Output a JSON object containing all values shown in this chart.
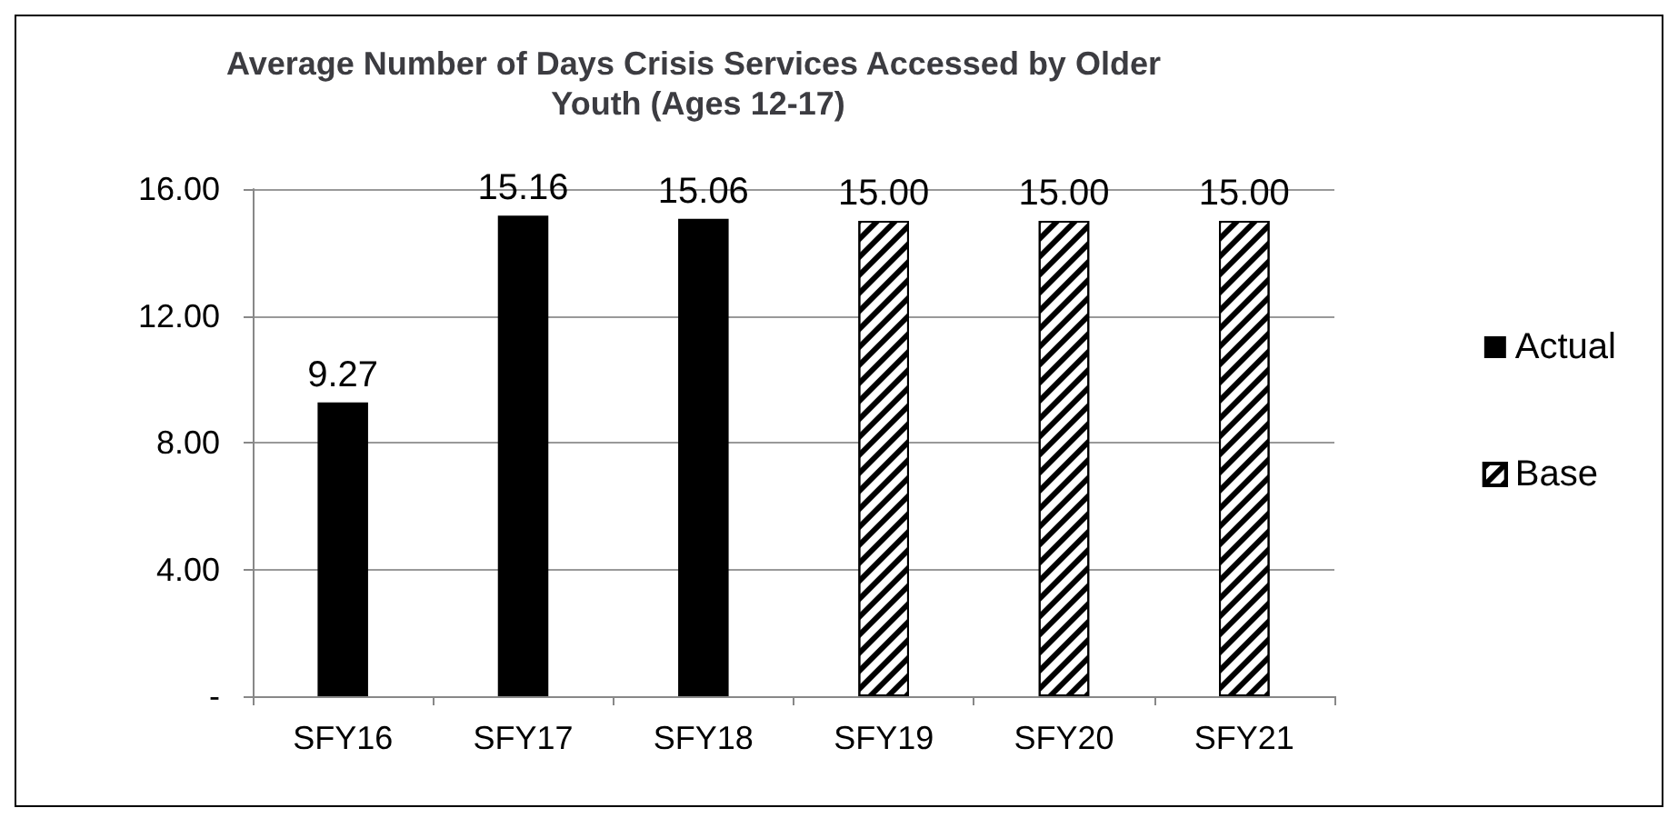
{
  "chart_data": {
    "type": "bar",
    "title": "Average Number of Days Crisis Services Accessed by Older Youth (Ages 12-17)",
    "categories": [
      "SFY16",
      "SFY17",
      "SFY18",
      "SFY19",
      "SFY20",
      "SFY21"
    ],
    "stacked": true,
    "series": [
      {
        "name": "Actual",
        "color": "#000000",
        "values": [
          9.27,
          15.16,
          15.06,
          null,
          null,
          null
        ],
        "value_labels": [
          "9.27",
          "15.16",
          "15.06",
          null,
          null,
          null
        ]
      },
      {
        "name": "Base",
        "color": "#ffffff",
        "values": [
          null,
          null,
          null,
          15,
          15,
          15
        ],
        "value_labels": [
          null,
          null,
          null,
          "15.00",
          "15.00",
          "15.00"
        ]
      }
    ],
    "ylim": [
      0,
      16
    ],
    "yticks": [
      {
        "value": 0,
        "label": "-"
      },
      {
        "value": 4,
        "label": "4.00"
      },
      {
        "value": 8,
        "label": "8.00"
      },
      {
        "value": 12,
        "label": "12.00"
      },
      {
        "value": 16,
        "label": "16.00"
      }
    ],
    "grid": "y",
    "legend": "right"
  }
}
